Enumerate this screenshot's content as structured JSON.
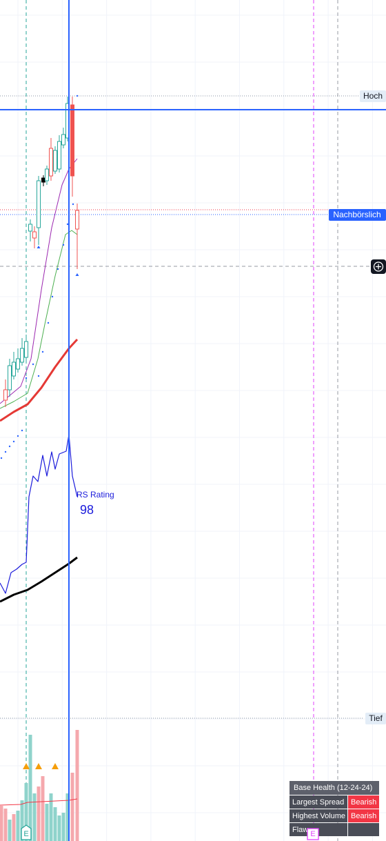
{
  "price_labels": {
    "high": "Hoch",
    "after_hours": "Nachbörslich",
    "low": "Tief"
  },
  "rs_rating": {
    "label": "RS Rating",
    "value": 98
  },
  "earnings_marker": "E",
  "base_health": {
    "title": "Base Health (12-24-24)",
    "rows": [
      [
        "Largest Spread",
        "Bearish"
      ],
      [
        "Highest Volume",
        "Bearish"
      ],
      [
        "Flaw"
      ]
    ]
  }
}
